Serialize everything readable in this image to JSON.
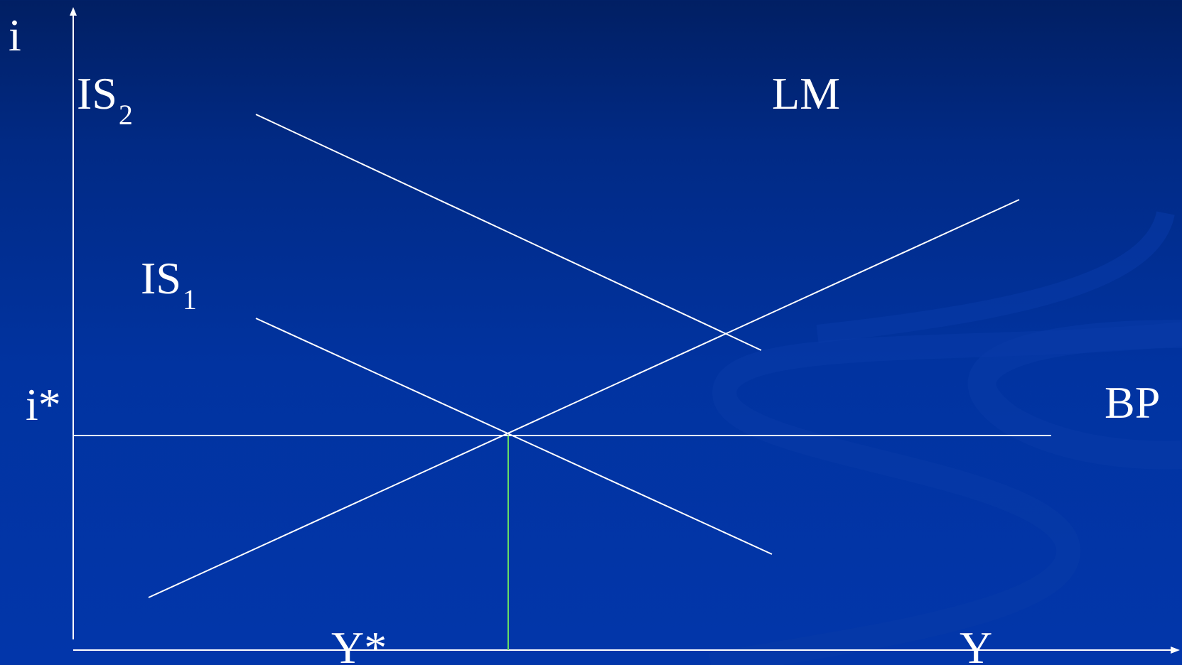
{
  "axes": {
    "y_label": "i",
    "x_label": "Y"
  },
  "markers": {
    "i_star": "i*",
    "y_star": "Y*"
  },
  "curves": {
    "is2": {
      "name": "IS",
      "subscript": "2"
    },
    "is1": {
      "name": "IS",
      "subscript": "1"
    },
    "lm": {
      "name": "LM"
    },
    "bp": {
      "name": "BP"
    }
  },
  "colors": {
    "background_top": "#011f63",
    "background_bottom": "#0236aa",
    "line": "#ffffff",
    "y_star_guide": "#66dd66"
  }
}
